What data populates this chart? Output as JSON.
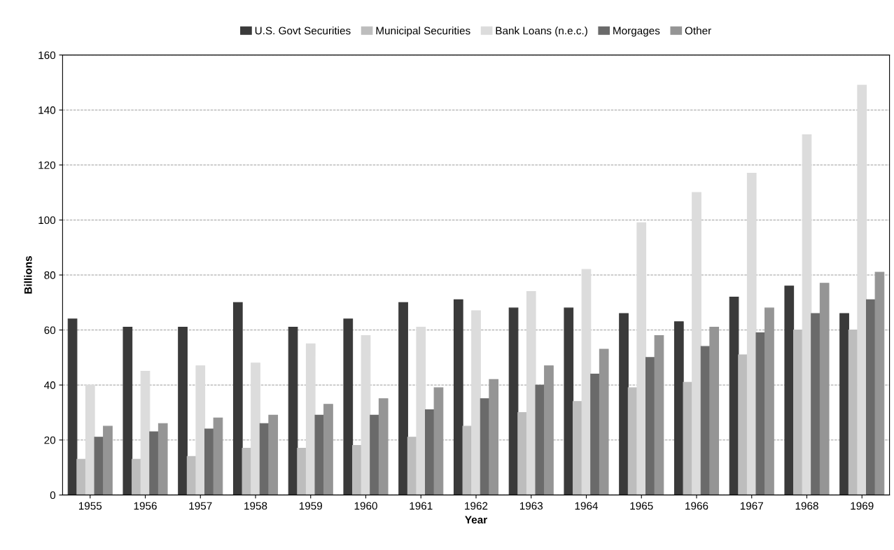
{
  "chart_data": {
    "type": "bar",
    "xlabel": "Year",
    "ylabel": "Billions",
    "categories": [
      "1955",
      "1956",
      "1957",
      "1958",
      "1959",
      "1960",
      "1961",
      "1962",
      "1963",
      "1964",
      "1965",
      "1966",
      "1967",
      "1968",
      "1969"
    ],
    "series": [
      {
        "name": "U.S. Govt Securities",
        "color": "#3a3a3a",
        "values": [
          64,
          61,
          61,
          70,
          61,
          64,
          70,
          71,
          68,
          68,
          66,
          63,
          72,
          76,
          66
        ]
      },
      {
        "name": "Municipal Securities",
        "color": "#bdbdbd",
        "values": [
          13,
          13,
          14,
          17,
          17,
          18,
          21,
          25,
          30,
          34,
          39,
          41,
          51,
          60,
          60
        ]
      },
      {
        "name": "Bank Loans (n.e.c.)",
        "color": "#dcdcdc",
        "values": [
          40,
          45,
          47,
          48,
          55,
          58,
          61,
          67,
          74,
          82,
          99,
          110,
          117,
          131,
          149
        ]
      },
      {
        "name": "Morgages",
        "color": "#6a6a6a",
        "values": [
          21,
          23,
          24,
          26,
          29,
          29,
          31,
          35,
          40,
          44,
          50,
          54,
          59,
          66,
          71
        ]
      },
      {
        "name": "Other",
        "color": "#959595",
        "values": [
          25,
          26,
          28,
          29,
          33,
          35,
          39,
          42,
          47,
          53,
          58,
          61,
          68,
          77,
          81
        ]
      }
    ],
    "ylim": [
      0,
      160
    ],
    "yticks": [
      0,
      20,
      40,
      60,
      80,
      100,
      120,
      140,
      160
    ],
    "grid": "y",
    "legend": "top"
  }
}
